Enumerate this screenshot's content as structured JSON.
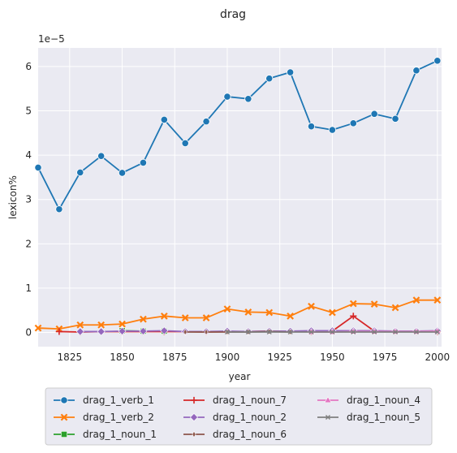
{
  "chart_data": {
    "type": "line",
    "title": "drag",
    "xlabel": "year",
    "ylabel": "lexicon%",
    "y_multiplier": "1e−5",
    "xlim": [
      1810,
      2002
    ],
    "ylim": [
      -0.32,
      6.42
    ],
    "xticks": [
      1825,
      1850,
      1875,
      1900,
      1925,
      1950,
      1975,
      2000
    ],
    "yticks": [
      0,
      1,
      2,
      3,
      4,
      5,
      6
    ],
    "grid": true,
    "legend_position": "bottom-center",
    "series": [
      {
        "name": "drag_1_verb_1",
        "color": "#1f77b4",
        "marker": "circle",
        "x": [
          1810,
          1820,
          1830,
          1840,
          1850,
          1860,
          1870,
          1880,
          1890,
          1900,
          1910,
          1920,
          1930,
          1940,
          1950,
          1960,
          1970,
          1980,
          1990,
          2000
        ],
        "values": [
          3.72,
          2.78,
          3.61,
          3.98,
          3.6,
          3.83,
          4.8,
          4.27,
          4.76,
          5.32,
          5.27,
          5.73,
          5.87,
          4.65,
          4.57,
          4.72,
          4.93,
          4.82,
          5.91,
          6.13
        ]
      },
      {
        "name": "drag_1_verb_2",
        "color": "#ff7f0e",
        "marker": "x",
        "x": [
          1810,
          1820,
          1830,
          1840,
          1850,
          1860,
          1870,
          1880,
          1890,
          1900,
          1910,
          1920,
          1930,
          1940,
          1950,
          1960,
          1970,
          1980,
          1990,
          2000
        ],
        "values": [
          0.1,
          0.08,
          0.17,
          0.17,
          0.19,
          0.3,
          0.37,
          0.33,
          0.33,
          0.53,
          0.46,
          0.45,
          0.37,
          0.59,
          0.45,
          0.65,
          0.64,
          0.56,
          0.73,
          0.73
        ]
      },
      {
        "name": "drag_1_noun_1",
        "color": "#2ca02c",
        "marker": "square",
        "x": [
          1850,
          1860,
          1870
        ],
        "values": [
          0.04,
          0.03,
          0.03
        ]
      },
      {
        "name": "drag_1_noun_7",
        "color": "#d62728",
        "marker": "plus",
        "x": [
          1820,
          1830,
          1840,
          1850,
          1860,
          1870,
          1880,
          1890,
          1900,
          1910,
          1920,
          1930,
          1940,
          1950,
          1960,
          1970,
          1980,
          1990,
          2000
        ],
        "values": [
          0.02,
          0.01,
          0.02,
          0.02,
          0.02,
          0.02,
          0.02,
          0.01,
          0.02,
          0.02,
          0.03,
          0.02,
          0.02,
          0.03,
          0.37,
          0.03,
          0.02,
          0.02,
          0.02
        ]
      },
      {
        "name": "drag_1_noun_2",
        "color": "#9467bd",
        "marker": "diamond",
        "x": [
          1830,
          1840,
          1850,
          1860,
          1870,
          1880,
          1890,
          1900,
          1910,
          1920,
          1930,
          1940,
          1950,
          1960,
          1970,
          1980,
          1990,
          2000
        ],
        "values": [
          0.02,
          0.02,
          0.03,
          0.03,
          0.04,
          0.02,
          0.02,
          0.03,
          0.02,
          0.03,
          0.03,
          0.04,
          0.04,
          0.04,
          0.04,
          0.03,
          0.03,
          0.04
        ]
      },
      {
        "name": "drag_1_noun_6",
        "color": "#8c564b",
        "marker": "thin-diamond",
        "x": [
          1880,
          1890,
          1900,
          1910,
          1920,
          1930
        ],
        "values": [
          0.01,
          0.01,
          0.01,
          0.01,
          0.02,
          0.01
        ]
      },
      {
        "name": "drag_1_noun_4",
        "color": "#e377c2",
        "marker": "triangle",
        "x": [
          1940,
          1950,
          1960,
          1970,
          1980,
          1990,
          2000
        ],
        "values": [
          0.01,
          0.01,
          0.02,
          0.02,
          0.02,
          0.02,
          0.03
        ]
      },
      {
        "name": "drag_1_noun_5",
        "color": "#7f7f7f",
        "marker": "small-x",
        "x": [
          1900,
          1910,
          1920,
          1930,
          1940,
          1950,
          1960,
          1970,
          1980,
          1990,
          2000
        ],
        "values": [
          0.01,
          0.01,
          0.01,
          0.01,
          0.01,
          0.01,
          0.01,
          0.01,
          0.01,
          0.01,
          0.01
        ]
      }
    ]
  }
}
